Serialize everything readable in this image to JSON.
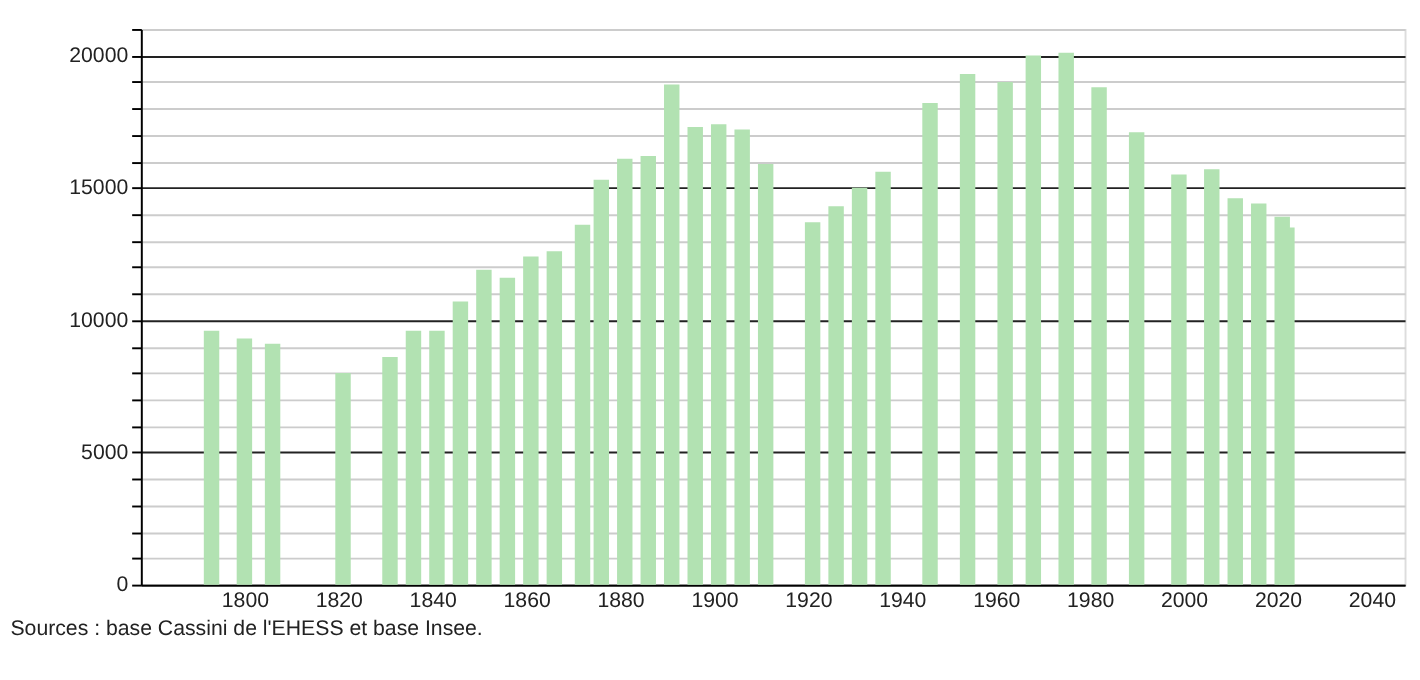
{
  "chart_data": {
    "type": "bar",
    "x": [
      1793,
      1800,
      1806,
      1821,
      1831,
      1836,
      1841,
      1846,
      1851,
      1856,
      1861,
      1866,
      1872,
      1876,
      1881,
      1886,
      1891,
      1896,
      1901,
      1906,
      1911,
      1921,
      1926,
      1931,
      1936,
      1946,
      1954,
      1962,
      1968,
      1975,
      1982,
      1990,
      1999,
      2006,
      2011,
      2016,
      2021,
      2022
    ],
    "values": [
      9600,
      9300,
      9100,
      8000,
      8600,
      9600,
      9600,
      10700,
      11900,
      11600,
      12400,
      12600,
      13600,
      15300,
      16100,
      16200,
      18900,
      17300,
      17400,
      17200,
      15900,
      13700,
      14300,
      15000,
      15600,
      18200,
      19300,
      19000,
      20000,
      20100,
      18800,
      17100,
      15500,
      15700,
      14600,
      14400,
      13900,
      13500
    ],
    "color": "#b2e2b2",
    "xlim": [
      1780,
      2045
    ],
    "xticks": [
      1800,
      1820,
      1840,
      1860,
      1880,
      1900,
      1920,
      1940,
      1960,
      1980,
      2000,
      2020,
      2040
    ],
    "ylim": [
      0,
      21000
    ],
    "yticks": [
      0,
      {
        "value": 1000,
        "label": null
      },
      {
        "value": 2000,
        "label": null
      },
      {
        "value": 3000,
        "label": null
      },
      {
        "value": 4000,
        "label": null
      },
      5000,
      {
        "value": 6000,
        "label": null
      },
      {
        "value": 7000,
        "label": null
      },
      {
        "value": 8000,
        "label": null
      },
      {
        "value": 9000,
        "label": null
      },
      10000,
      {
        "value": 11000,
        "label": null
      },
      {
        "value": 12000,
        "label": null
      },
      {
        "value": 13000,
        "label": null
      },
      {
        "value": 14000,
        "label": null
      },
      15000,
      {
        "value": 16000,
        "label": null
      },
      {
        "value": 17000,
        "label": null
      },
      {
        "value": 18000,
        "label": null
      },
      {
        "value": 19000,
        "label": null
      },
      20000,
      {
        "value": 21000,
        "label": null
      }
    ],
    "grid": "y",
    "annotations": [
      "Sources : base Cassini de l'EHESS et base Insee."
    ]
  }
}
